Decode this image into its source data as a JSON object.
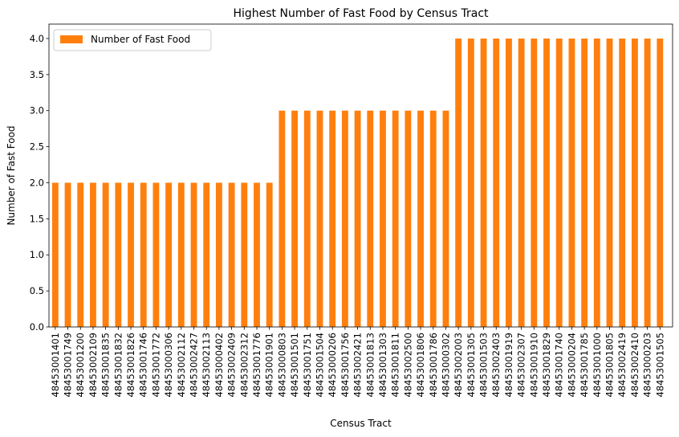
{
  "chart_data": {
    "type": "bar",
    "title": "Highest Number of Fast Food by Census Tract",
    "xlabel": "Census Tract",
    "ylabel": "Number of Fast Food",
    "ylim": [
      0,
      4.2
    ],
    "yticks": [
      "0.0",
      "0.5",
      "1.0",
      "1.5",
      "2.0",
      "2.5",
      "3.0",
      "3.5",
      "4.0"
    ],
    "grid": false,
    "legend_position": "upper-left",
    "bar_color": "#ff7f0e",
    "categories": [
      "48453001401",
      "48453001749",
      "48453001200",
      "48453002109",
      "48453001835",
      "48453001832",
      "48453001826",
      "48453001746",
      "48453001772",
      "48453000306",
      "48453002112",
      "48453002427",
      "48453002113",
      "48453000402",
      "48453002409",
      "48453002312",
      "48453001776",
      "48453001901",
      "48453000803",
      "48453001501",
      "48453001751",
      "48453001504",
      "48453000206",
      "48453001756",
      "48453002421",
      "48453001813",
      "48453001303",
      "48453001811",
      "48453002500",
      "48453001806",
      "48453001786",
      "48453000302",
      "48453002003",
      "48453001305",
      "48453001503",
      "48453002403",
      "48453001919",
      "48453002307",
      "48453001910",
      "48453001829",
      "48453001740",
      "48453000204",
      "48453001785",
      "48453001000",
      "48453001805",
      "48453002419",
      "48453002410",
      "48453000203",
      "48453001505"
    ],
    "series": [
      {
        "name": "Number of Fast Food",
        "values": [
          2,
          2,
          2,
          2,
          2,
          2,
          2,
          2,
          2,
          2,
          2,
          2,
          2,
          2,
          2,
          2,
          2,
          2,
          3,
          3,
          3,
          3,
          3,
          3,
          3,
          3,
          3,
          3,
          3,
          3,
          3,
          3,
          4,
          4,
          4,
          4,
          4,
          4,
          4,
          4,
          4,
          4,
          4,
          4,
          4,
          4,
          4,
          4,
          4
        ]
      }
    ]
  }
}
